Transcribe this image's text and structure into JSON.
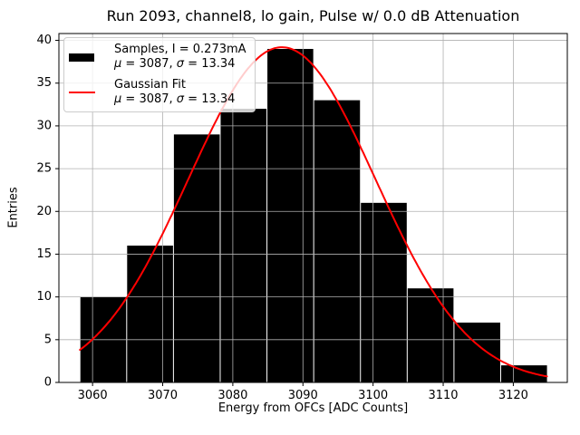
{
  "chart_data": {
    "type": "bar",
    "subtype": "histogram",
    "title": "Run 2093, channel8, lo gain, Pulse w/ 0.0 dB Attenuation",
    "xlabel": "Energy from OFCs [ADC Counts]",
    "ylabel": "Entries",
    "bins": {
      "start": 3058.2,
      "width": 6.6667,
      "counts": [
        10,
        16,
        29,
        32,
        39,
        33,
        21,
        11,
        7,
        2
      ]
    },
    "bar_color": "#000000",
    "gaussian_fit": {
      "mu": 3087,
      "sigma": 13.34,
      "amplitude": 39.2,
      "x_start": 3058.2,
      "x_end": 3124.8,
      "color": "#ff0000",
      "linewidth": 2
    },
    "xlim": [
      3055.2,
      3127.7
    ],
    "ylim": [
      0,
      40.8
    ],
    "x_ticks": [
      3060,
      3070,
      3080,
      3090,
      3100,
      3110,
      3120
    ],
    "y_ticks": [
      0,
      5,
      10,
      15,
      20,
      25,
      30,
      35,
      40
    ],
    "grid": true,
    "grid_color": "#b0b0b0",
    "grid_above_bars": true,
    "legend_position": "upper left",
    "legend": {
      "entries": [
        {
          "label": "Samples, I = 0.273mA",
          "mu_symbol": "μ",
          "mu_rest": " = 3087, ",
          "sigma_symbol": "σ",
          "sigma_rest": " = 13.34",
          "swatch_color": "#000000",
          "swatch_style": "thick-line"
        },
        {
          "label": "Gaussian Fit",
          "mu_symbol": "μ",
          "mu_rest": " = 3087, ",
          "sigma_symbol": "σ",
          "sigma_rest": " = 13.34",
          "swatch_color": "#ff0000",
          "swatch_style": "thin-line"
        }
      ]
    }
  }
}
